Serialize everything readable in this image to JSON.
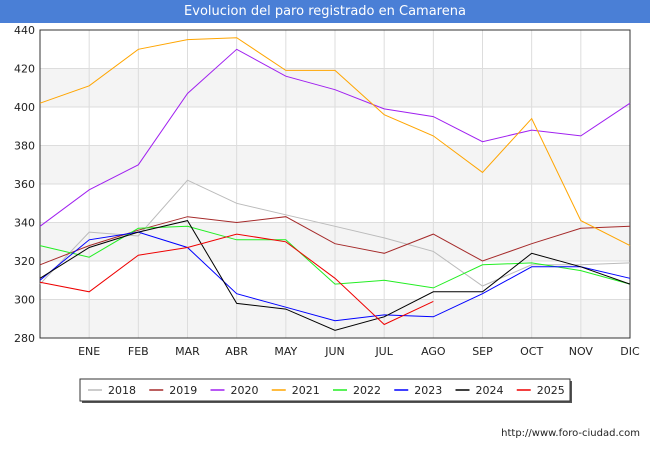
{
  "title": "Evolucion del paro registrado en Camarena",
  "footer": "http://www.foro-ciudad.com",
  "chart_data": {
    "type": "line",
    "title": "Evolucion del paro registrado en Camarena",
    "categories": [
      "",
      "ENE",
      "FEB",
      "MAR",
      "ABR",
      "MAY",
      "JUN",
      "JUL",
      "AGO",
      "SEP",
      "OCT",
      "NOV",
      "DIC"
    ],
    "ylim": [
      280,
      440
    ],
    "yticks": [
      280,
      300,
      320,
      340,
      360,
      380,
      400,
      420,
      440
    ],
    "grid": true,
    "legend_position": "bottom",
    "series": [
      {
        "name": "2018",
        "color": "#bbbbbb",
        "values": [
          308,
          335,
          333,
          362,
          350,
          344,
          338,
          332,
          325,
          307,
          318,
          318,
          319
        ]
      },
      {
        "name": "2019",
        "color": "#a52a2a",
        "values": [
          318,
          328,
          336,
          343,
          340,
          343,
          329,
          324,
          334,
          320,
          329,
          337,
          338
        ]
      },
      {
        "name": "2020",
        "color": "#a020f0",
        "values": [
          338,
          357,
          370,
          407,
          430,
          416,
          409,
          399,
          395,
          382,
          388,
          385,
          402
        ]
      },
      {
        "name": "2021",
        "color": "#ffa500",
        "values": [
          402,
          411,
          430,
          435,
          436,
          419,
          419,
          396,
          385,
          366,
          394,
          341,
          328
        ]
      },
      {
        "name": "2022",
        "color": "#22ee22",
        "values": [
          328,
          322,
          337,
          338,
          331,
          331,
          308,
          310,
          306,
          318,
          319,
          315,
          308
        ]
      },
      {
        "name": "2023",
        "color": "#0000ff",
        "values": [
          310,
          331,
          335,
          327,
          303,
          296,
          289,
          292,
          291,
          303,
          317,
          317,
          311
        ]
      },
      {
        "name": "2024",
        "color": "#000000",
        "values": [
          311,
          327,
          335,
          341,
          298,
          295,
          284,
          291,
          304,
          304,
          324,
          317,
          308
        ]
      },
      {
        "name": "2025",
        "color": "#ee0000",
        "values": [
          309,
          304,
          323,
          327,
          334,
          330,
          311,
          287,
          299,
          null,
          null,
          null,
          null
        ]
      }
    ]
  }
}
